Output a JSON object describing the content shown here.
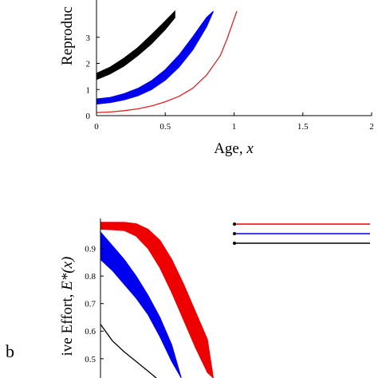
{
  "chart_data": [
    {
      "type": "area",
      "panel": "a",
      "ylabel": "Reproduc",
      "xlabel_text": "Age, ",
      "xlabel_var": "x",
      "xlim": [
        0,
        2
      ],
      "ylim": [
        0,
        4
      ],
      "x_ticks": [
        "0",
        "0.5",
        "1",
        "1.5",
        "2"
      ],
      "y_ticks": [
        "0",
        "1",
        "2",
        "3"
      ],
      "series": [
        {
          "color": "#000000",
          "style": "band",
          "x": [
            0,
            0.1,
            0.2,
            0.3,
            0.4,
            0.5,
            0.57
          ],
          "lower": [
            1.38,
            1.6,
            1.9,
            2.3,
            2.75,
            3.3,
            3.75
          ],
          "upper": [
            1.62,
            1.86,
            2.2,
            2.6,
            3.1,
            3.62,
            4.0
          ]
        },
        {
          "color": "#0000ee",
          "style": "band",
          "x": [
            0,
            0.1,
            0.2,
            0.3,
            0.4,
            0.5,
            0.6,
            0.7,
            0.8,
            0.85
          ],
          "lower": [
            0.44,
            0.5,
            0.6,
            0.76,
            1.0,
            1.36,
            1.86,
            2.52,
            3.4,
            4.0
          ],
          "upper": [
            0.64,
            0.7,
            0.84,
            1.04,
            1.34,
            1.76,
            2.32,
            3.02,
            3.76,
            4.0
          ]
        },
        {
          "color": "#dd2222",
          "style": "line",
          "x": [
            0,
            0.1,
            0.2,
            0.3,
            0.4,
            0.5,
            0.6,
            0.7,
            0.8,
            0.9,
            0.95,
            1.0,
            1.02
          ],
          "y": [
            0.12,
            0.14,
            0.19,
            0.26,
            0.37,
            0.53,
            0.74,
            1.05,
            1.55,
            2.3,
            2.95,
            3.7,
            4.0
          ]
        }
      ]
    },
    {
      "type": "area",
      "panel": "b",
      "panel_label": "b",
      "ylabel_text": "ive Effort, ",
      "ylabel_var": "E*(x)",
      "ylim": [
        0.43,
        1.0
      ],
      "y_ticks": [
        "0.5",
        "0.6",
        "0.7",
        "0.8",
        "0.9"
      ],
      "xlim": [
        0,
        2
      ],
      "series": [
        {
          "color": "#ee0000",
          "style": "band",
          "x": [
            0,
            0.1,
            0.2,
            0.3,
            0.4,
            0.5,
            0.6,
            0.7,
            0.8,
            0.9,
            0.95
          ],
          "lower": [
            0.97,
            0.968,
            0.965,
            0.945,
            0.9,
            0.83,
            0.74,
            0.64,
            0.54,
            0.45,
            0.43
          ],
          "upper": [
            0.995,
            0.995,
            0.995,
            0.99,
            0.97,
            0.93,
            0.86,
            0.77,
            0.67,
            0.57,
            0.43
          ]
        },
        {
          "color": "#0000ee",
          "style": "band",
          "x": [
            0,
            0.1,
            0.2,
            0.3,
            0.4,
            0.5,
            0.6,
            0.68
          ],
          "lower": [
            0.86,
            0.82,
            0.77,
            0.72,
            0.66,
            0.58,
            0.49,
            0.43
          ],
          "upper": [
            0.96,
            0.91,
            0.86,
            0.8,
            0.73,
            0.65,
            0.55,
            0.43
          ]
        },
        {
          "color": "#000000",
          "style": "line",
          "x": [
            0,
            0.1,
            0.2,
            0.3,
            0.4,
            0.47
          ],
          "y": [
            0.625,
            0.565,
            0.525,
            0.49,
            0.455,
            0.43
          ]
        }
      ],
      "legend": {
        "placement": "top-right",
        "entries": [
          {
            "color": "#ee0000",
            "name": ""
          },
          {
            "color": "#0000ee",
            "name": ""
          },
          {
            "color": "#000000",
            "name": ""
          }
        ]
      }
    }
  ]
}
